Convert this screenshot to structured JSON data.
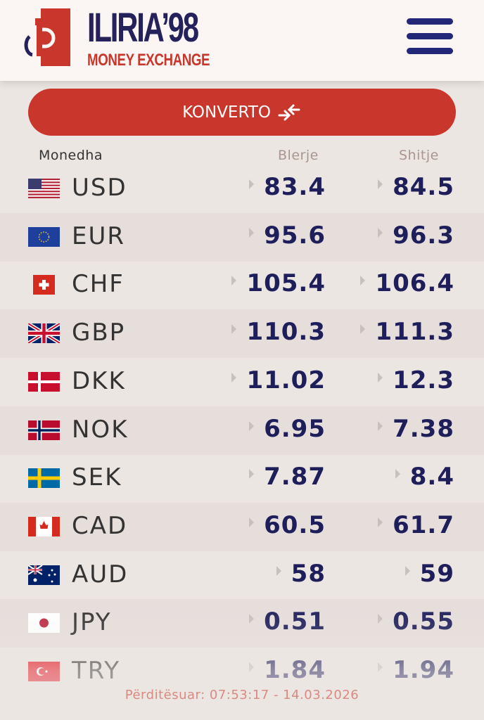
{
  "header": {
    "brand": "ILIRIA’98",
    "subtitle": "MONEY EXCHANGE",
    "logo_letters": "iP"
  },
  "convert_button": {
    "label": "KONVERTO"
  },
  "columns": {
    "currency": "Monedha",
    "buy": "Blerje",
    "sell": "Shitje"
  },
  "colors": {
    "accent": "#c9372c",
    "navy": "#1e1e5a"
  },
  "rates": [
    {
      "code": "USD",
      "flag": "us",
      "buy": "83.4",
      "sell": "84.5"
    },
    {
      "code": "EUR",
      "flag": "eu",
      "buy": "95.6",
      "sell": "96.3"
    },
    {
      "code": "CHF",
      "flag": "ch",
      "buy": "105.4",
      "sell": "106.4"
    },
    {
      "code": "GBP",
      "flag": "gb",
      "buy": "110.3",
      "sell": "111.3"
    },
    {
      "code": "DKK",
      "flag": "dk",
      "buy": "11.02",
      "sell": "12.3"
    },
    {
      "code": "NOK",
      "flag": "no",
      "buy": "6.95",
      "sell": "7.38"
    },
    {
      "code": "SEK",
      "flag": "se",
      "buy": "7.87",
      "sell": "8.4"
    },
    {
      "code": "CAD",
      "flag": "ca",
      "buy": "60.5",
      "sell": "61.7"
    },
    {
      "code": "AUD",
      "flag": "au",
      "buy": "58",
      "sell": "59"
    },
    {
      "code": "JPY",
      "flag": "jp",
      "buy": "0.51",
      "sell": "0.55"
    },
    {
      "code": "TRY",
      "flag": "tr",
      "buy": "1.84",
      "sell": "1.94"
    }
  ],
  "updated": "Përditësuar: 07:53:17 - 14.03.2026"
}
